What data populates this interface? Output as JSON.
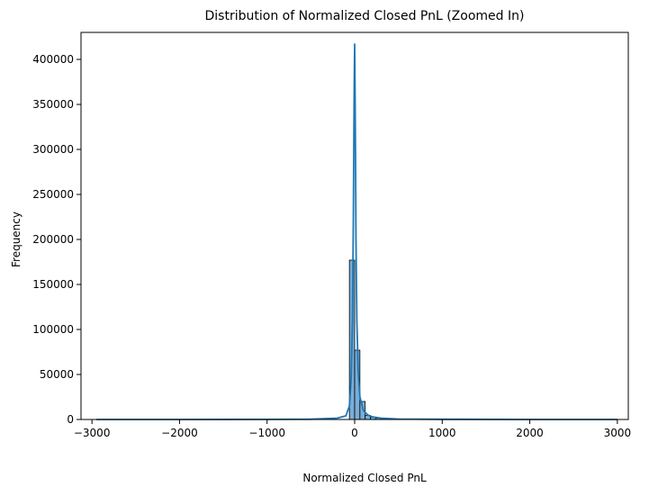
{
  "chart_data": {
    "type": "bar",
    "title": "Distribution of Normalized Closed PnL (Zoomed In)",
    "xlabel": "Normalized Closed PnL",
    "ylabel": "Frequency",
    "xlim": [
      -3000,
      3000
    ],
    "ylim": [
      0,
      430000
    ],
    "xticks": [
      -3000,
      -2000,
      -1000,
      0,
      1000,
      2000,
      3000
    ],
    "xtick_labels": [
      "−3000",
      "−2000",
      "−1000",
      "0",
      "1000",
      "2000",
      "3000"
    ],
    "yticks": [
      0,
      50000,
      100000,
      150000,
      200000,
      250000,
      300000,
      350000,
      400000
    ],
    "ytick_labels": [
      "0",
      "50000",
      "100000",
      "150000",
      "200000",
      "250000",
      "300000",
      "350000",
      "400000"
    ],
    "grid": false,
    "colors": {
      "bar_fill": "#7aaed6",
      "bar_edge": "#000000",
      "kde_line": "#1f77b4"
    },
    "histogram": {
      "bin_edges": [
        -60,
        0,
        60,
        120,
        180,
        240,
        300,
        360,
        420,
        480
      ],
      "counts": [
        177000,
        77000,
        20000,
        4500,
        2500,
        1500,
        900,
        500,
        300
      ]
    },
    "kde": {
      "x": [
        -2950,
        -2000,
        -1000,
        -500,
        -200,
        -100,
        -60,
        -40,
        -25,
        -15,
        -10,
        -5,
        0,
        5,
        10,
        15,
        25,
        40,
        60,
        100,
        150,
        200,
        300,
        500,
        1000,
        2000,
        3000
      ],
      "y": [
        0,
        0,
        100,
        300,
        1500,
        4000,
        15000,
        45000,
        110000,
        220000,
        300000,
        370000,
        417000,
        360000,
        290000,
        200000,
        110000,
        55000,
        25000,
        10000,
        5000,
        3000,
        1500,
        500,
        200,
        0,
        0
      ]
    }
  }
}
